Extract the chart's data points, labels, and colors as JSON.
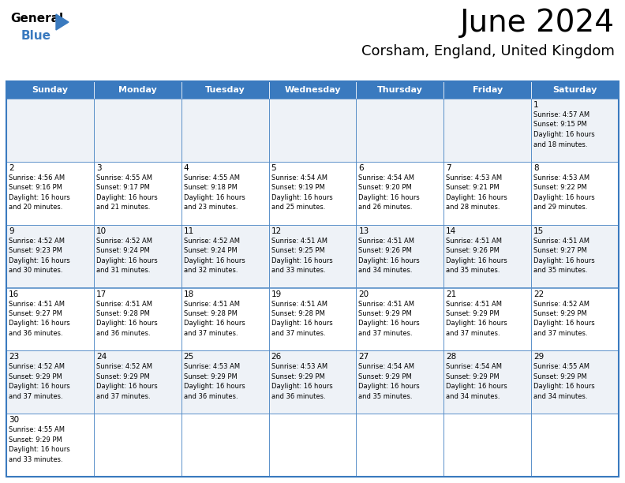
{
  "title": "June 2024",
  "subtitle": "Corsham, England, United Kingdom",
  "days_of_week": [
    "Sunday",
    "Monday",
    "Tuesday",
    "Wednesday",
    "Thursday",
    "Friday",
    "Saturday"
  ],
  "header_bg": "#3a7abf",
  "header_text": "#ffffff",
  "cell_bg_light": "#eef2f7",
  "cell_bg_white": "#ffffff",
  "border_color": "#3a7abf",
  "text_color": "#222222",
  "calendar_data": [
    [
      {
        "day": "",
        "sunrise": "",
        "sunset": "",
        "daylight": ""
      },
      {
        "day": "",
        "sunrise": "",
        "sunset": "",
        "daylight": ""
      },
      {
        "day": "",
        "sunrise": "",
        "sunset": "",
        "daylight": ""
      },
      {
        "day": "",
        "sunrise": "",
        "sunset": "",
        "daylight": ""
      },
      {
        "day": "",
        "sunrise": "",
        "sunset": "",
        "daylight": ""
      },
      {
        "day": "",
        "sunrise": "",
        "sunset": "",
        "daylight": ""
      },
      {
        "day": "1",
        "sunrise": "4:57 AM",
        "sunset": "9:15 PM",
        "daylight": "16 hours\nand 18 minutes."
      }
    ],
    [
      {
        "day": "2",
        "sunrise": "4:56 AM",
        "sunset": "9:16 PM",
        "daylight": "16 hours\nand 20 minutes."
      },
      {
        "day": "3",
        "sunrise": "4:55 AM",
        "sunset": "9:17 PM",
        "daylight": "16 hours\nand 21 minutes."
      },
      {
        "day": "4",
        "sunrise": "4:55 AM",
        "sunset": "9:18 PM",
        "daylight": "16 hours\nand 23 minutes."
      },
      {
        "day": "5",
        "sunrise": "4:54 AM",
        "sunset": "9:19 PM",
        "daylight": "16 hours\nand 25 minutes."
      },
      {
        "day": "6",
        "sunrise": "4:54 AM",
        "sunset": "9:20 PM",
        "daylight": "16 hours\nand 26 minutes."
      },
      {
        "day": "7",
        "sunrise": "4:53 AM",
        "sunset": "9:21 PM",
        "daylight": "16 hours\nand 28 minutes."
      },
      {
        "day": "8",
        "sunrise": "4:53 AM",
        "sunset": "9:22 PM",
        "daylight": "16 hours\nand 29 minutes."
      }
    ],
    [
      {
        "day": "9",
        "sunrise": "4:52 AM",
        "sunset": "9:23 PM",
        "daylight": "16 hours\nand 30 minutes."
      },
      {
        "day": "10",
        "sunrise": "4:52 AM",
        "sunset": "9:24 PM",
        "daylight": "16 hours\nand 31 minutes."
      },
      {
        "day": "11",
        "sunrise": "4:52 AM",
        "sunset": "9:24 PM",
        "daylight": "16 hours\nand 32 minutes."
      },
      {
        "day": "12",
        "sunrise": "4:51 AM",
        "sunset": "9:25 PM",
        "daylight": "16 hours\nand 33 minutes."
      },
      {
        "day": "13",
        "sunrise": "4:51 AM",
        "sunset": "9:26 PM",
        "daylight": "16 hours\nand 34 minutes."
      },
      {
        "day": "14",
        "sunrise": "4:51 AM",
        "sunset": "9:26 PM",
        "daylight": "16 hours\nand 35 minutes."
      },
      {
        "day": "15",
        "sunrise": "4:51 AM",
        "sunset": "9:27 PM",
        "daylight": "16 hours\nand 35 minutes."
      }
    ],
    [
      {
        "day": "16",
        "sunrise": "4:51 AM",
        "sunset": "9:27 PM",
        "daylight": "16 hours\nand 36 minutes."
      },
      {
        "day": "17",
        "sunrise": "4:51 AM",
        "sunset": "9:28 PM",
        "daylight": "16 hours\nand 36 minutes."
      },
      {
        "day": "18",
        "sunrise": "4:51 AM",
        "sunset": "9:28 PM",
        "daylight": "16 hours\nand 37 minutes."
      },
      {
        "day": "19",
        "sunrise": "4:51 AM",
        "sunset": "9:28 PM",
        "daylight": "16 hours\nand 37 minutes."
      },
      {
        "day": "20",
        "sunrise": "4:51 AM",
        "sunset": "9:29 PM",
        "daylight": "16 hours\nand 37 minutes."
      },
      {
        "day": "21",
        "sunrise": "4:51 AM",
        "sunset": "9:29 PM",
        "daylight": "16 hours\nand 37 minutes."
      },
      {
        "day": "22",
        "sunrise": "4:52 AM",
        "sunset": "9:29 PM",
        "daylight": "16 hours\nand 37 minutes."
      }
    ],
    [
      {
        "day": "23",
        "sunrise": "4:52 AM",
        "sunset": "9:29 PM",
        "daylight": "16 hours\nand 37 minutes."
      },
      {
        "day": "24",
        "sunrise": "4:52 AM",
        "sunset": "9:29 PM",
        "daylight": "16 hours\nand 37 minutes."
      },
      {
        "day": "25",
        "sunrise": "4:53 AM",
        "sunset": "9:29 PM",
        "daylight": "16 hours\nand 36 minutes."
      },
      {
        "day": "26",
        "sunrise": "4:53 AM",
        "sunset": "9:29 PM",
        "daylight": "16 hours\nand 36 minutes."
      },
      {
        "day": "27",
        "sunrise": "4:54 AM",
        "sunset": "9:29 PM",
        "daylight": "16 hours\nand 35 minutes."
      },
      {
        "day": "28",
        "sunrise": "4:54 AM",
        "sunset": "9:29 PM",
        "daylight": "16 hours\nand 34 minutes."
      },
      {
        "day": "29",
        "sunrise": "4:55 AM",
        "sunset": "9:29 PM",
        "daylight": "16 hours\nand 34 minutes."
      }
    ],
    [
      {
        "day": "30",
        "sunrise": "4:55 AM",
        "sunset": "9:29 PM",
        "daylight": "16 hours\nand 33 minutes."
      },
      {
        "day": "",
        "sunrise": "",
        "sunset": "",
        "daylight": ""
      },
      {
        "day": "",
        "sunrise": "",
        "sunset": "",
        "daylight": ""
      },
      {
        "day": "",
        "sunrise": "",
        "sunset": "",
        "daylight": ""
      },
      {
        "day": "",
        "sunrise": "",
        "sunset": "",
        "daylight": ""
      },
      {
        "day": "",
        "sunrise": "",
        "sunset": "",
        "daylight": ""
      },
      {
        "day": "",
        "sunrise": "",
        "sunset": "",
        "daylight": ""
      }
    ]
  ]
}
